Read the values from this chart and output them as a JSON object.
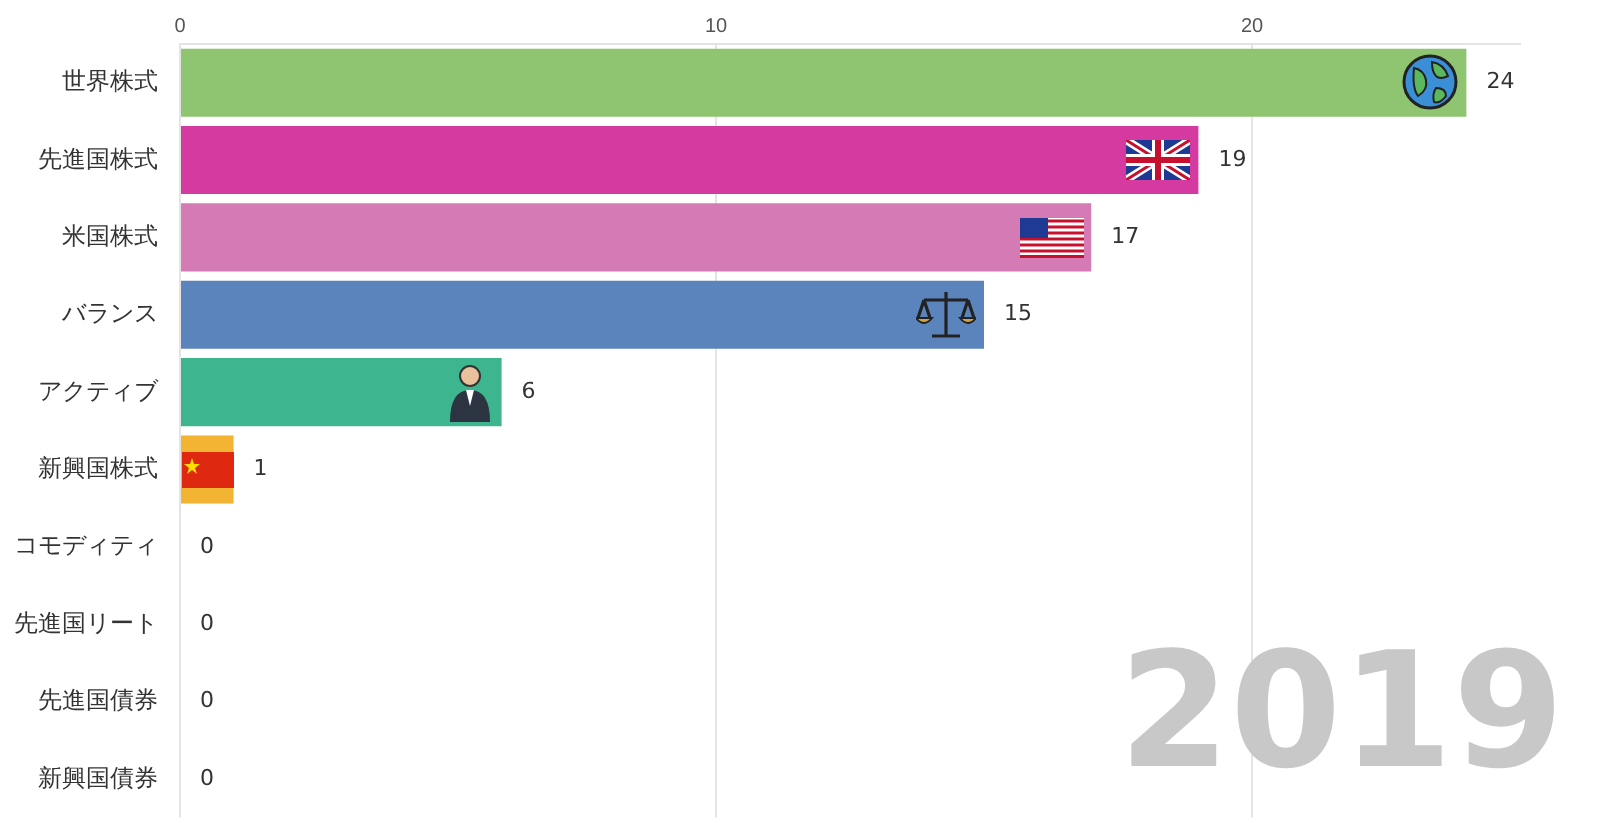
{
  "chart_data": {
    "type": "bar",
    "orientation": "horizontal",
    "categories": [
      "世界株式",
      "先進国株式",
      "米国株式",
      "バランス",
      "アクティブ",
      "新興国株式",
      "コモディティ",
      "先進国リート",
      "先進国債券",
      "新興国債券"
    ],
    "values": [
      24,
      19,
      17,
      15,
      6,
      1,
      0,
      0,
      0,
      0
    ],
    "colors": [
      "#8fc471",
      "#d43a9f",
      "#d47bb6",
      "#5b83bc",
      "#3db68f",
      "#f3b433",
      "#9e9e9e",
      "#9e9e9e",
      "#9e9e9e",
      "#9e9e9e"
    ],
    "xlim": [
      0,
      25
    ],
    "xticks": [
      0,
      10,
      20
    ],
    "grid": "x",
    "legend": false,
    "data_labels": true,
    "annotations": [
      "2019"
    ]
  }
}
